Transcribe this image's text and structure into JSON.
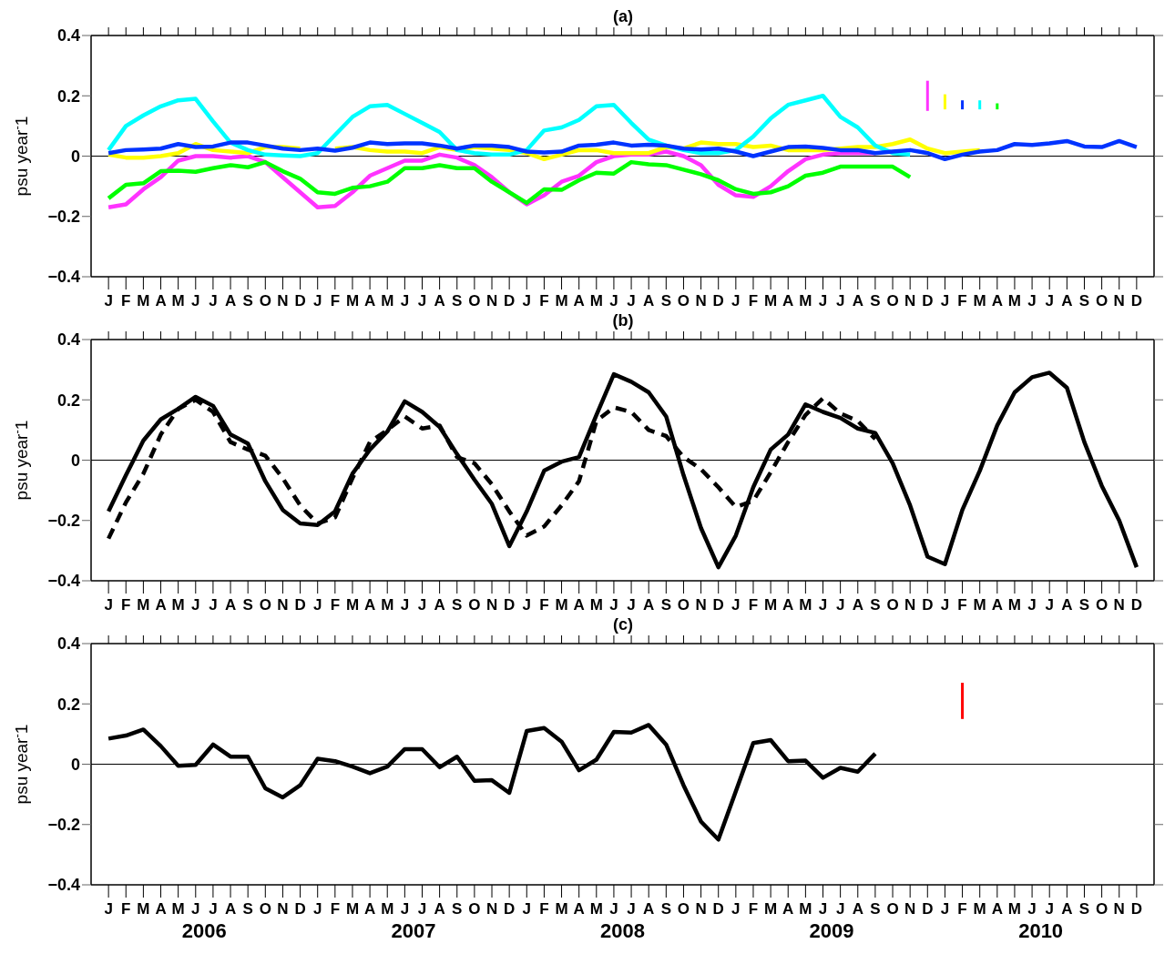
{
  "chart_data": [
    {
      "type": "line",
      "title": "(a)",
      "ylabel": "psu year$^{-}$1",
      "categories": [
        "J",
        "F",
        "M",
        "A",
        "M",
        "J",
        "J",
        "A",
        "S",
        "O",
        "N",
        "D",
        "J",
        "F",
        "M",
        "A",
        "M",
        "J",
        "J",
        "A",
        "S",
        "O",
        "N",
        "D",
        "J",
        "F",
        "M",
        "A",
        "M",
        "J",
        "J",
        "A",
        "S",
        "O",
        "N",
        "D",
        "J",
        "F",
        "M",
        "A",
        "M",
        "J",
        "J",
        "A",
        "S",
        "O",
        "N",
        "D",
        "J",
        "F",
        "M",
        "A",
        "M",
        "J",
        "J",
        "A",
        "S",
        "O",
        "N",
        "D"
      ],
      "ylim": [
        -0.4,
        0.4
      ],
      "yticks": [
        -0.4,
        -0.2,
        0,
        0.2,
        0.4
      ],
      "grid": false,
      "marker": "none",
      "ref_lines": [
        {
          "axis": "y",
          "value": 0,
          "color": "#000000"
        }
      ],
      "series": [
        {
          "color": "#ff33ff",
          "values": [
            -0.17,
            -0.16,
            -0.11,
            -0.07,
            -0.015,
            0,
            0,
            -0.005,
            0,
            -0.02,
            -0.07,
            -0.12,
            -0.17,
            -0.165,
            -0.12,
            -0.065,
            -0.04,
            -0.015,
            -0.015,
            0.005,
            -0.005,
            -0.03,
            -0.07,
            -0.12,
            -0.16,
            -0.13,
            -0.085,
            -0.065,
            -0.02,
            0,
            0.005,
            0.005,
            0.015,
            0,
            -0.03,
            -0.095,
            -0.13,
            -0.135,
            -0.1,
            -0.05,
            -0.01,
            0.005,
            0.01,
            0.01,
            0.01,
            null,
            null,
            null,
            null,
            null,
            null,
            null,
            null,
            null,
            null,
            null,
            null,
            null,
            null,
            null
          ]
        },
        {
          "color": "#ffff00",
          "values": [
            0.005,
            -0.005,
            -0.005,
            0,
            0.01,
            0.04,
            0.02,
            0.015,
            0.01,
            0.03,
            0.03,
            0.025,
            null,
            0.025,
            0.03,
            0.02,
            0.015,
            0.015,
            0.01,
            0.03,
            0.02,
            0.03,
            0.025,
            0.02,
            0.01,
            -0.01,
            0.005,
            0.02,
            0.02,
            0.01,
            0.01,
            0.01,
            0.03,
            0.025,
            0.045,
            0.04,
            0.04,
            0.03,
            0.035,
            0.02,
            0.02,
            0.02,
            0.025,
            0.03,
            0.03,
            0.04,
            0.055,
            0.025,
            0.01,
            0.015,
            0.02,
            null,
            null,
            null,
            null,
            null,
            null,
            null,
            null,
            null
          ]
        },
        {
          "color": "#00ffff",
          "values": [
            0.02,
            0.1,
            0.135,
            0.165,
            0.185,
            0.19,
            0.115,
            0.045,
            0.02,
            0.005,
            0.002,
            0,
            0.01,
            0.07,
            0.13,
            0.165,
            0.17,
            0.14,
            0.11,
            0.08,
            0.02,
            0.01,
            0.005,
            0.005,
            0.02,
            0.085,
            0.095,
            0.12,
            0.165,
            0.17,
            0.11,
            0.055,
            0.035,
            0.02,
            0.01,
            0.01,
            0.02,
            0.065,
            0.125,
            0.17,
            0.185,
            0.2,
            0.13,
            0.095,
            0.035,
            0.01,
            0.005,
            null,
            null,
            null,
            null,
            null,
            null,
            null,
            null,
            null,
            null,
            null,
            null,
            null
          ]
        },
        {
          "color": "#00ff00",
          "values": [
            -0.14,
            -0.095,
            -0.09,
            -0.05,
            -0.048,
            -0.052,
            -0.04,
            -0.03,
            -0.037,
            -0.02,
            -0.05,
            -0.075,
            -0.12,
            -0.125,
            -0.105,
            -0.1,
            -0.085,
            -0.04,
            -0.04,
            -0.03,
            -0.04,
            -0.04,
            -0.085,
            -0.12,
            -0.155,
            -0.11,
            -0.112,
            -0.08,
            -0.055,
            -0.058,
            -0.02,
            -0.027,
            -0.03,
            -0.045,
            -0.06,
            -0.08,
            -0.11,
            -0.125,
            -0.12,
            -0.1,
            -0.065,
            -0.055,
            -0.035,
            -0.035,
            -0.035,
            -0.035,
            -0.07,
            null,
            null,
            null,
            null,
            null,
            null,
            null,
            null,
            null,
            null,
            null,
            null,
            null
          ]
        },
        {
          "color": "#0033ff",
          "values": [
            0.01,
            0.02,
            0.022,
            0.025,
            0.04,
            0.03,
            0.032,
            0.045,
            0.045,
            0.035,
            0.025,
            0.02,
            0.025,
            0.018,
            0.028,
            0.045,
            0.04,
            0.042,
            0.042,
            0.035,
            0.025,
            0.035,
            0.035,
            0.03,
            0.015,
            0.012,
            0.015,
            0.035,
            0.038,
            0.045,
            0.035,
            0.038,
            0.035,
            0.025,
            0.022,
            0.025,
            0.015,
            0,
            0.015,
            0.03,
            0.032,
            0.027,
            0.02,
            0.02,
            0.01,
            0.015,
            0.02,
            0.01,
            -0.01,
            0.005,
            0.015,
            0.02,
            0.04,
            0.037,
            0.042,
            0.05,
            0.032,
            0.03,
            0.05,
            0.03
          ]
        },
        {
          "type": "bar",
          "color": "#ff33ff",
          "base": [
            null,
            null,
            null,
            null,
            null,
            null,
            null,
            null,
            null,
            null,
            null,
            null,
            null,
            null,
            null,
            null,
            null,
            null,
            null,
            null,
            null,
            null,
            null,
            null,
            null,
            null,
            null,
            null,
            null,
            null,
            null,
            null,
            null,
            null,
            null,
            null,
            null,
            null,
            null,
            null,
            null,
            null,
            null,
            null,
            null,
            null,
            null,
            0.15,
            null,
            null,
            null,
            null,
            null,
            null,
            null,
            null,
            null,
            null,
            null,
            null
          ],
          "values": [
            null,
            null,
            null,
            null,
            null,
            null,
            null,
            null,
            null,
            null,
            null,
            null,
            null,
            null,
            null,
            null,
            null,
            null,
            null,
            null,
            null,
            null,
            null,
            null,
            null,
            null,
            null,
            null,
            null,
            null,
            null,
            null,
            null,
            null,
            null,
            null,
            null,
            null,
            null,
            null,
            null,
            null,
            null,
            null,
            null,
            null,
            null,
            0.1,
            null,
            null,
            null,
            null,
            null,
            null,
            null,
            null,
            null,
            null,
            null,
            null
          ]
        },
        {
          "type": "bar",
          "color": "#ffff00",
          "base": [
            null,
            null,
            null,
            null,
            null,
            null,
            null,
            null,
            null,
            null,
            null,
            null,
            null,
            null,
            null,
            null,
            null,
            null,
            null,
            null,
            null,
            null,
            null,
            null,
            null,
            null,
            null,
            null,
            null,
            null,
            null,
            null,
            null,
            null,
            null,
            null,
            null,
            null,
            null,
            null,
            null,
            null,
            null,
            null,
            null,
            null,
            null,
            null,
            0.155,
            null,
            null,
            null,
            null,
            null,
            null,
            null,
            null,
            null,
            null,
            null
          ],
          "values": [
            null,
            null,
            null,
            null,
            null,
            null,
            null,
            null,
            null,
            null,
            null,
            null,
            null,
            null,
            null,
            null,
            null,
            null,
            null,
            null,
            null,
            null,
            null,
            null,
            null,
            null,
            null,
            null,
            null,
            null,
            null,
            null,
            null,
            null,
            null,
            null,
            null,
            null,
            null,
            null,
            null,
            null,
            null,
            null,
            null,
            null,
            null,
            null,
            0.05,
            null,
            null,
            null,
            null,
            null,
            null,
            null,
            null,
            null,
            null,
            null
          ]
        },
        {
          "type": "bar",
          "color": "#0033ff",
          "base": [
            null,
            null,
            null,
            null,
            null,
            null,
            null,
            null,
            null,
            null,
            null,
            null,
            null,
            null,
            null,
            null,
            null,
            null,
            null,
            null,
            null,
            null,
            null,
            null,
            null,
            null,
            null,
            null,
            null,
            null,
            null,
            null,
            null,
            null,
            null,
            null,
            null,
            null,
            null,
            null,
            null,
            null,
            null,
            null,
            null,
            null,
            null,
            null,
            null,
            0.155,
            null,
            null,
            null,
            null,
            null,
            null,
            null,
            null,
            null,
            null
          ],
          "values": [
            null,
            null,
            null,
            null,
            null,
            null,
            null,
            null,
            null,
            null,
            null,
            null,
            null,
            null,
            null,
            null,
            null,
            null,
            null,
            null,
            null,
            null,
            null,
            null,
            null,
            null,
            null,
            null,
            null,
            null,
            null,
            null,
            null,
            null,
            null,
            null,
            null,
            null,
            null,
            null,
            null,
            null,
            null,
            null,
            null,
            null,
            null,
            null,
            null,
            0.03,
            null,
            null,
            null,
            null,
            null,
            null,
            null,
            null,
            null,
            null
          ]
        },
        {
          "type": "bar",
          "color": "#00ffff",
          "base": [
            null,
            null,
            null,
            null,
            null,
            null,
            null,
            null,
            null,
            null,
            null,
            null,
            null,
            null,
            null,
            null,
            null,
            null,
            null,
            null,
            null,
            null,
            null,
            null,
            null,
            null,
            null,
            null,
            null,
            null,
            null,
            null,
            null,
            null,
            null,
            null,
            null,
            null,
            null,
            null,
            null,
            null,
            null,
            null,
            null,
            null,
            null,
            null,
            null,
            null,
            0.155,
            null,
            null,
            null,
            null,
            null,
            null,
            null,
            null,
            null
          ],
          "values": [
            null,
            null,
            null,
            null,
            null,
            null,
            null,
            null,
            null,
            null,
            null,
            null,
            null,
            null,
            null,
            null,
            null,
            null,
            null,
            null,
            null,
            null,
            null,
            null,
            null,
            null,
            null,
            null,
            null,
            null,
            null,
            null,
            null,
            null,
            null,
            null,
            null,
            null,
            null,
            null,
            null,
            null,
            null,
            null,
            null,
            null,
            null,
            null,
            null,
            null,
            0.03,
            null,
            null,
            null,
            null,
            null,
            null,
            null,
            null,
            null
          ]
        },
        {
          "type": "bar",
          "color": "#00ff00",
          "base": [
            null,
            null,
            null,
            null,
            null,
            null,
            null,
            null,
            null,
            null,
            null,
            null,
            null,
            null,
            null,
            null,
            null,
            null,
            null,
            null,
            null,
            null,
            null,
            null,
            null,
            null,
            null,
            null,
            null,
            null,
            null,
            null,
            null,
            null,
            null,
            null,
            null,
            null,
            null,
            null,
            null,
            null,
            null,
            null,
            null,
            null,
            null,
            null,
            null,
            null,
            null,
            0.155,
            null,
            null,
            null,
            null,
            null,
            null,
            null,
            null
          ],
          "values": [
            null,
            null,
            null,
            null,
            null,
            null,
            null,
            null,
            null,
            null,
            null,
            null,
            null,
            null,
            null,
            null,
            null,
            null,
            null,
            null,
            null,
            null,
            null,
            null,
            null,
            null,
            null,
            null,
            null,
            null,
            null,
            null,
            null,
            null,
            null,
            null,
            null,
            null,
            null,
            null,
            null,
            null,
            null,
            null,
            null,
            null,
            null,
            null,
            null,
            null,
            null,
            0.02,
            null,
            null,
            null,
            null,
            null,
            null,
            null,
            null
          ]
        }
      ]
    },
    {
      "type": "line",
      "title": "(b)",
      "ylabel": "psu year$^{-}$1",
      "categories": [
        "J",
        "F",
        "M",
        "A",
        "M",
        "J",
        "J",
        "A",
        "S",
        "O",
        "N",
        "D",
        "J",
        "F",
        "M",
        "A",
        "M",
        "J",
        "J",
        "A",
        "S",
        "O",
        "N",
        "D",
        "J",
        "F",
        "M",
        "A",
        "M",
        "J",
        "J",
        "A",
        "S",
        "O",
        "N",
        "D",
        "J",
        "F",
        "M",
        "A",
        "M",
        "J",
        "J",
        "A",
        "S",
        "O",
        "N",
        "D",
        "J",
        "F",
        "M",
        "A",
        "M",
        "J",
        "J",
        "A",
        "S",
        "O",
        "N",
        "D"
      ],
      "ylim": [
        -0.4,
        0.4
      ],
      "yticks": [
        -0.4,
        -0.2,
        0,
        0.2,
        0.4
      ],
      "grid": false,
      "marker": "none",
      "ref_lines": [
        {
          "axis": "y",
          "value": 0,
          "color": "#000000"
        }
      ],
      "series": [
        {
          "color": "#000000",
          "line_style": "solid",
          "values": [
            -0.17,
            -0.05,
            0.065,
            0.135,
            0.17,
            0.21,
            0.18,
            0.085,
            0.055,
            -0.07,
            -0.165,
            -0.21,
            -0.215,
            -0.17,
            -0.045,
            0.035,
            0.095,
            0.195,
            0.16,
            0.11,
            0.02,
            -0.065,
            -0.145,
            -0.285,
            -0.17,
            -0.035,
            -0.005,
            0.01,
            0.15,
            0.285,
            0.26,
            0.225,
            0.145,
            -0.05,
            -0.225,
            -0.355,
            -0.25,
            -0.09,
            0.035,
            0.085,
            0.185,
            0.16,
            0.14,
            0.105,
            0.09,
            -0.01,
            -0.15,
            -0.32,
            -0.345,
            -0.165,
            -0.035,
            0.115,
            0.225,
            0.275,
            0.29,
            0.24,
            0.06,
            -0.085,
            -0.2,
            -0.355
          ]
        },
        {
          "color": "#000000",
          "line_style": "dashed",
          "values": [
            -0.26,
            -0.14,
            -0.045,
            0.085,
            0.17,
            0.2,
            0.16,
            0.06,
            0.035,
            0.015,
            -0.06,
            -0.15,
            -0.21,
            -0.19,
            -0.06,
            0.06,
            0.1,
            0.145,
            0.105,
            0.115,
            0.01,
            -0.01,
            -0.08,
            -0.17,
            -0.25,
            -0.22,
            -0.15,
            -0.07,
            0.13,
            0.175,
            0.16,
            0.1,
            0.08,
            0.01,
            -0.03,
            -0.09,
            -0.155,
            -0.135,
            -0.04,
            0.06,
            0.15,
            0.205,
            0.155,
            0.13,
            0.07,
            null,
            null,
            null,
            null,
            null,
            null,
            null,
            null,
            null,
            null,
            null,
            null,
            null,
            null,
            null
          ]
        }
      ]
    },
    {
      "type": "line",
      "title": "(c)",
      "ylabel": "psu year$^{-}$1",
      "categories": [
        "J",
        "F",
        "M",
        "A",
        "M",
        "J",
        "J",
        "A",
        "S",
        "O",
        "N",
        "D",
        "J",
        "F",
        "M",
        "A",
        "M",
        "J",
        "J",
        "A",
        "S",
        "O",
        "N",
        "D",
        "J",
        "F",
        "M",
        "A",
        "M",
        "J",
        "J",
        "A",
        "S",
        "O",
        "N",
        "D",
        "J",
        "F",
        "M",
        "A",
        "M",
        "J",
        "J",
        "A",
        "S",
        "O",
        "N",
        "D",
        "J",
        "F",
        "M",
        "A",
        "M",
        "J",
        "J",
        "A",
        "S",
        "O",
        "N",
        "D"
      ],
      "ylim": [
        -0.4,
        0.4
      ],
      "yticks": [
        -0.4,
        -0.2,
        0,
        0.2,
        0.4
      ],
      "grid": false,
      "marker": "none",
      "ref_lines": [
        {
          "axis": "y",
          "value": 0,
          "color": "#000000"
        }
      ],
      "annotations": [
        "2006",
        "2007",
        "2008",
        "2009",
        "2010"
      ],
      "series": [
        {
          "color": "#000000",
          "values": [
            0.085,
            0.095,
            0.115,
            0.06,
            -0.005,
            -0.002,
            0.065,
            0.025,
            0.025,
            -0.08,
            -0.11,
            -0.07,
            0.018,
            0.01,
            -0.008,
            -0.03,
            -0.008,
            0.05,
            0.05,
            -0.01,
            0.025,
            -0.055,
            -0.053,
            -0.095,
            0.11,
            0.12,
            0.075,
            -0.02,
            0.015,
            0.107,
            0.105,
            0.13,
            0.065,
            -0.07,
            -0.19,
            -0.25,
            -0.09,
            0.07,
            0.08,
            0.01,
            0.012,
            -0.045,
            -0.012,
            -0.025,
            0.035,
            null,
            null,
            null,
            null,
            null,
            null,
            null,
            null,
            null,
            null,
            null,
            null,
            null,
            null,
            null
          ]
        },
        {
          "type": "bar",
          "color": "#ff0000",
          "base": [
            null,
            null,
            null,
            null,
            null,
            null,
            null,
            null,
            null,
            null,
            null,
            null,
            null,
            null,
            null,
            null,
            null,
            null,
            null,
            null,
            null,
            null,
            null,
            null,
            null,
            null,
            null,
            null,
            null,
            null,
            null,
            null,
            null,
            null,
            null,
            null,
            null,
            null,
            null,
            null,
            null,
            null,
            null,
            null,
            null,
            null,
            null,
            null,
            null,
            0.15,
            null,
            null,
            null,
            null,
            null,
            null,
            null,
            null,
            null,
            null
          ],
          "values": [
            null,
            null,
            null,
            null,
            null,
            null,
            null,
            null,
            null,
            null,
            null,
            null,
            null,
            null,
            null,
            null,
            null,
            null,
            null,
            null,
            null,
            null,
            null,
            null,
            null,
            null,
            null,
            null,
            null,
            null,
            null,
            null,
            null,
            null,
            null,
            null,
            null,
            null,
            null,
            null,
            null,
            null,
            null,
            null,
            null,
            null,
            null,
            null,
            null,
            0.12,
            null,
            null,
            null,
            null,
            null,
            null,
            null,
            null,
            null,
            null
          ]
        }
      ]
    }
  ]
}
